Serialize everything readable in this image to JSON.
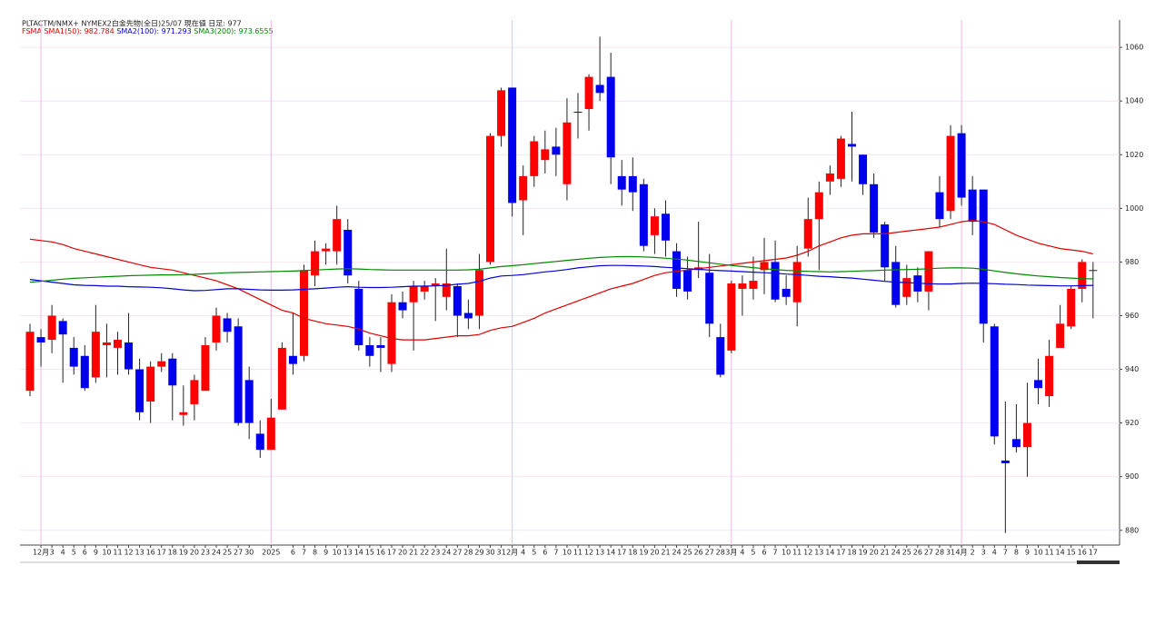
{
  "chart_data": {
    "type": "candlestick",
    "title": "PLTACTM/NMX+ NYMEX2白金先物(全日)25/07 現在値 日足: 977",
    "indicator": "FSMA",
    "categories": [
      null,
      "12月",
      "3",
      "4",
      "5",
      "6",
      "9",
      "10",
      "11",
      "12",
      "13",
      "16",
      "17",
      "18",
      "19",
      "20",
      "23",
      "24",
      "25",
      "27",
      "30",
      null,
      "2025",
      null,
      "6",
      "7",
      "8",
      "9",
      "10",
      "13",
      "14",
      "15",
      "16",
      "17",
      "20",
      "21",
      "22",
      "23",
      "24",
      "27",
      "28",
      "29",
      "30",
      "31",
      "2月",
      "4",
      "5",
      "6",
      "7",
      "10",
      "11",
      "12",
      "13",
      "14",
      "17",
      "18",
      "19",
      "20",
      "21",
      "24",
      "25",
      "26",
      "27",
      "28",
      "3月",
      "4",
      "5",
      "6",
      "7",
      "10",
      "11",
      "12",
      "13",
      "14",
      "17",
      "18",
      "19",
      "20",
      "21",
      "24",
      "25",
      "26",
      "27",
      "28",
      "31",
      "4月",
      "2",
      "3",
      "4",
      "7",
      "8",
      "9",
      "10",
      "11",
      "14",
      "15",
      "16",
      "17"
    ],
    "open": [
      932,
      952,
      951,
      958,
      948,
      945,
      937,
      949,
      948,
      950,
      940,
      928,
      941,
      944,
      923,
      927,
      932,
      950,
      959,
      956,
      936,
      916,
      910,
      925,
      945,
      945,
      975,
      984,
      984,
      992,
      970,
      949,
      949,
      942,
      965,
      965,
      969,
      971,
      967,
      971,
      961,
      960,
      980,
      1027,
      1045,
      1003,
      1012,
      1018,
      1023,
      1009,
      1036,
      1037,
      1046,
      1049,
      1012,
      1012,
      1009,
      990,
      998,
      984,
      977,
      977,
      976,
      952,
      947,
      970,
      970,
      977,
      980,
      970,
      965,
      985,
      996,
      1010,
      1011,
      1024,
      1020,
      1009,
      994,
      980,
      967,
      975,
      969,
      1006,
      999,
      1028,
      1007,
      1007,
      956,
      906,
      914,
      911,
      936,
      930,
      948,
      956,
      970,
      977
    ],
    "high": [
      957,
      955,
      964,
      959,
      952,
      949,
      964,
      957,
      954,
      961,
      944,
      943,
      946,
      946,
      934,
      938,
      952,
      963,
      961,
      959,
      941,
      921,
      929,
      950,
      961,
      979,
      988,
      987,
      1001,
      996,
      973,
      952,
      952,
      968,
      969,
      973,
      973,
      974,
      985,
      972,
      966,
      983,
      1028,
      1045,
      1045,
      1016,
      1027,
      1029,
      1030,
      1041,
      1043,
      1050,
      1064,
      1058,
      1018,
      1019,
      1011,
      1000,
      1003,
      987,
      982,
      995,
      983,
      957,
      973,
      975,
      982,
      989,
      988,
      975,
      986,
      1004,
      1010,
      1016,
      1027,
      1036,
      1020,
      1013,
      995,
      986,
      979,
      978,
      984,
      1012,
      1031,
      1031,
      1012,
      1007,
      957,
      928,
      927,
      935,
      944,
      951,
      964,
      971,
      981,
      980
    ],
    "low": [
      930,
      941,
      946,
      935,
      938,
      932,
      935,
      937,
      938,
      938,
      921,
      920,
      939,
      921,
      919,
      921,
      932,
      947,
      950,
      919,
      914,
      907,
      910,
      925,
      938,
      943,
      971,
      979,
      979,
      972,
      947,
      941,
      939,
      939,
      959,
      947,
      966,
      958,
      962,
      952,
      955,
      955,
      979,
      1023,
      997,
      990,
      1008,
      1013,
      1012,
      1003,
      1026,
      1029,
      1040,
      1009,
      1001,
      999,
      984,
      983,
      982,
      967,
      966,
      974,
      952,
      937,
      946,
      960,
      966,
      968,
      965,
      964,
      956,
      982,
      977,
      1005,
      1008,
      1010,
      1005,
      989,
      973,
      963,
      964,
      965,
      962,
      993,
      996,
      1001,
      990,
      950,
      912,
      879,
      909,
      900,
      927,
      926,
      948,
      955,
      965,
      959
    ],
    "close": [
      954,
      950,
      960,
      953,
      941,
      933,
      954,
      950,
      951,
      940,
      924,
      941,
      943,
      934,
      924,
      936,
      949,
      960,
      954,
      920,
      920,
      910,
      922,
      948,
      942,
      977,
      984,
      985,
      996,
      975,
      949,
      945,
      948,
      965,
      962,
      971,
      971,
      972,
      972,
      960,
      959,
      977,
      1027,
      1044,
      1002,
      1012,
      1025,
      1022,
      1020,
      1032,
      1036,
      1049,
      1043,
      1019,
      1007,
      1006,
      986,
      997,
      988,
      970,
      969,
      978,
      957,
      938,
      972,
      972,
      973,
      980,
      966,
      967,
      980,
      996,
      1006,
      1013,
      1026,
      1023,
      1009,
      991,
      978,
      964,
      974,
      969,
      984,
      996,
      1027,
      1004,
      995,
      957,
      915,
      905,
      911,
      920,
      933,
      945,
      957,
      970,
      980,
      977
    ],
    "up_color": "#ff0000",
    "down_color": "#0000ee",
    "series": [
      {
        "name": "SMA1(50): 982.784",
        "color": "#e00000",
        "values": [
          988.5,
          988,
          987.5,
          986.5,
          985,
          984,
          983,
          982,
          981,
          980,
          979,
          978,
          977.5,
          977,
          976,
          975,
          974,
          973,
          971.5,
          970,
          968,
          966,
          964,
          962,
          961,
          959,
          958,
          957,
          956.5,
          956,
          955,
          953.5,
          952.5,
          951.5,
          951,
          951,
          951,
          951.5,
          952,
          952.5,
          952.5,
          953,
          954.5,
          955.5,
          956,
          957.5,
          959,
          961,
          962.5,
          964,
          965.5,
          967,
          968.5,
          970,
          971,
          972,
          973.5,
          975,
          976,
          976.5,
          977,
          977.5,
          978,
          978.5,
          979,
          979.5,
          980,
          980.5,
          981,
          981.5,
          982.5,
          984,
          986,
          987.5,
          989,
          990,
          990.5,
          990.5,
          990.5,
          991,
          991.5,
          992,
          992.5,
          993,
          994,
          995,
          995.5,
          995,
          994,
          992,
          990,
          988.5,
          987,
          986,
          985,
          984.5,
          984,
          983
        ]
      },
      {
        "name": "SMA2(100): 971.293",
        "color": "#0000dd",
        "values": [
          973.5,
          973,
          972.5,
          972,
          971.5,
          971.3,
          971.2,
          971,
          971,
          970.8,
          970.7,
          970.6,
          970.4,
          970,
          969.6,
          969.3,
          969.4,
          969.7,
          970,
          970,
          969.8,
          969.6,
          969.5,
          969.5,
          969.6,
          969.8,
          970,
          970.3,
          970.6,
          970.8,
          970.6,
          970.5,
          970.5,
          970.6,
          970.8,
          971,
          971,
          971.1,
          971.3,
          971.7,
          972,
          972.8,
          974,
          974.8,
          975,
          975.3,
          975.8,
          976.3,
          976.7,
          977.2,
          977.8,
          978.2,
          978.6,
          978.7,
          978.7,
          978.6,
          978.5,
          978.3,
          978,
          977.8,
          977.5,
          977.3,
          977,
          976.8,
          976.6,
          976.4,
          976.2,
          976,
          975.8,
          975.5,
          975.3,
          975,
          974.7,
          974.5,
          974.2,
          974,
          973.6,
          973.2,
          972.8,
          972.5,
          972.3,
          972.1,
          971.9,
          971.8,
          971.8,
          972,
          972.1,
          972,
          971.9,
          971.7,
          971.6,
          971.4,
          971.3,
          971.2,
          971.1,
          971.1,
          971.2,
          971.3
        ]
      },
      {
        "name": "SMA3(200): 973.6555",
        "color": "#008800",
        "values": [
          972.5,
          972.8,
          973.2,
          973.6,
          973.9,
          974.1,
          974.3,
          974.5,
          974.7,
          974.9,
          975,
          975.1,
          975.2,
          975.2,
          975.3,
          975.4,
          975.6,
          975.8,
          976,
          976.1,
          976.2,
          976.3,
          976.4,
          976.5,
          976.6,
          976.8,
          977,
          977.2,
          977.4,
          977.5,
          977.4,
          977.2,
          977.1,
          977,
          977,
          977,
          977,
          977,
          977,
          977,
          977.1,
          977.3,
          977.8,
          978.3,
          978.6,
          979,
          979.4,
          979.8,
          980.2,
          980.6,
          981,
          981.4,
          981.7,
          981.9,
          982,
          982,
          981.9,
          981.7,
          981.4,
          981.1,
          980.7,
          980.2,
          979.7,
          979.2,
          978.7,
          978.3,
          977.9,
          977.5,
          977.2,
          976.9,
          976.7,
          976.5,
          976.4,
          976.3,
          976.4,
          976.5,
          976.7,
          976.8,
          977,
          977.1,
          977.2,
          977.3,
          977.5,
          977.7,
          977.8,
          977.8,
          977.7,
          977.3,
          976.7,
          976.1,
          975.6,
          975.2,
          974.8,
          974.5,
          974.2,
          974,
          973.8,
          973.7
        ]
      }
    ],
    "ylim": [
      874.5,
      1070.2
    ],
    "yticks": [
      880,
      900,
      920,
      940,
      960,
      980,
      1000,
      1020,
      1040,
      1060
    ],
    "grid": true
  }
}
